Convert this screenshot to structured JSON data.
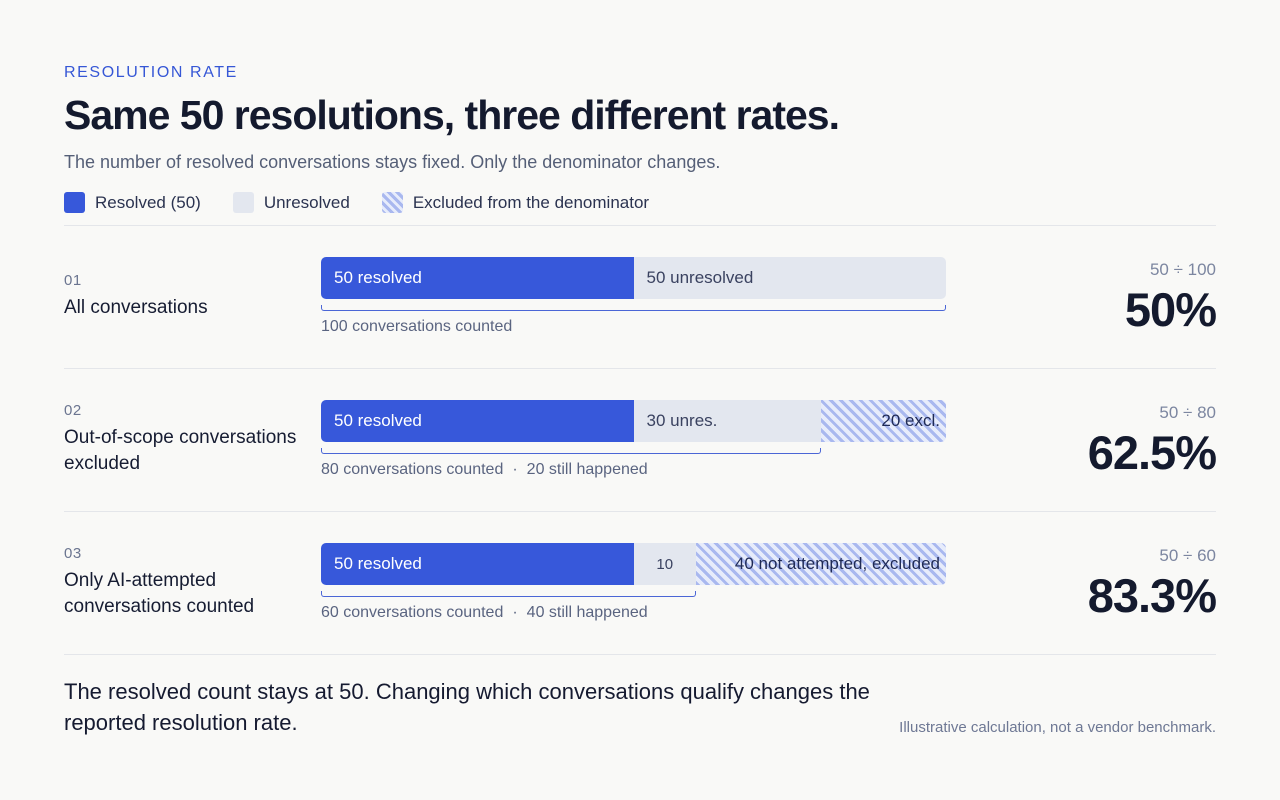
{
  "eyebrow": "RESOLUTION RATE",
  "title": "Same 50 resolutions, three different rates.",
  "subtitle": "The number of resolved conversations stays fixed. Only the denominator changes.",
  "legend": {
    "resolved": "Resolved (50)",
    "unresolved": "Unresolved",
    "excluded": "Excluded from the denominator"
  },
  "rows": [
    {
      "number": "01",
      "label": "All conversations",
      "resolved_label": "50 resolved",
      "unresolved_label": "50 unresolved",
      "excluded_label": "",
      "counted": "100 conversations counted",
      "still_happened": "",
      "formula": "50 ÷ 100",
      "rate": "50%"
    },
    {
      "number": "02",
      "label": "Out-of-scope conversations excluded",
      "resolved_label": "50 resolved",
      "unresolved_label": "30 unres.",
      "excluded_label": "20 excl.",
      "counted": "80 conversations counted",
      "still_happened": "20 still happened",
      "formula": "50 ÷ 80",
      "rate": "62.5%"
    },
    {
      "number": "03",
      "label": "Only AI-attempted conversations counted",
      "resolved_label": "50 resolved",
      "unresolved_label": "10",
      "excluded_label": "40 not attempted, excluded",
      "counted": "60 conversations counted",
      "still_happened": "40 still happened",
      "formula": "50 ÷ 60",
      "rate": "83.3%"
    }
  ],
  "separator": "·",
  "footnote": "The resolved count stays at 50. Changing which conversations qualify changes the reported resolution rate.",
  "disclaimer": "Illustrative calculation, not a vendor benchmark.",
  "colors": {
    "accent": "#3758da",
    "unresolved": "#e3e7ef",
    "excluded_stripe": "#a9b8ef"
  },
  "chart_data": {
    "type": "bar",
    "stacked": true,
    "orientation": "horizontal",
    "categories": [
      "All conversations",
      "Out-of-scope conversations excluded",
      "Only AI-attempted conversations counted"
    ],
    "series": [
      {
        "name": "Resolved (50)",
        "values": [
          50,
          50,
          50
        ]
      },
      {
        "name": "Unresolved",
        "values": [
          50,
          30,
          10
        ]
      },
      {
        "name": "Excluded from the denominator",
        "values": [
          0,
          20,
          40
        ]
      }
    ],
    "denominators": [
      100,
      80,
      60
    ],
    "rates_percent": [
      50,
      62.5,
      83.3
    ],
    "xlim": [
      0,
      100
    ],
    "grid": false,
    "legend_position": "top-left"
  }
}
